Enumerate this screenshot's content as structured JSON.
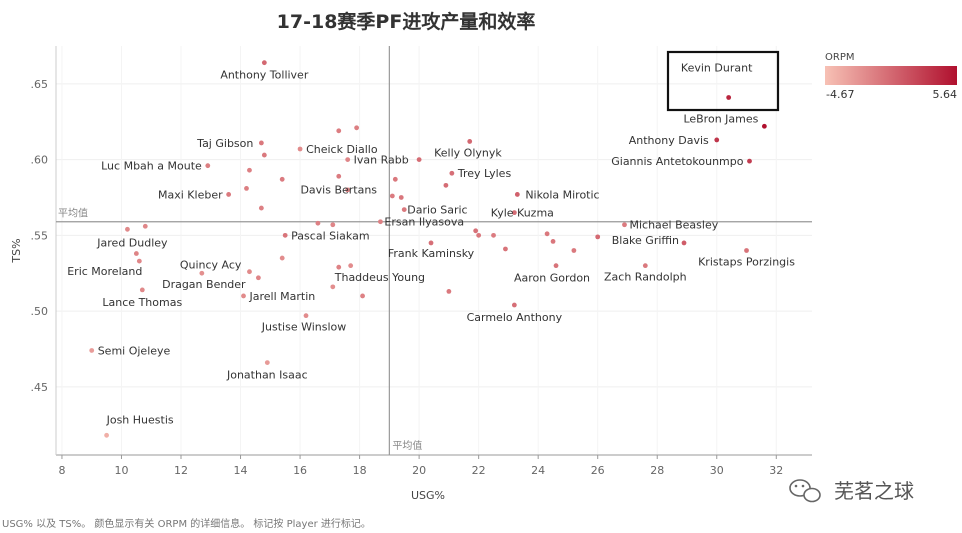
{
  "chart_data": {
    "type": "scatter",
    "title": "17-18赛季PF进攻产量和效率",
    "xlabel": "USG%",
    "ylabel": "TS%",
    "xlim": [
      7.8,
      33.2
    ],
    "ylim": [
      0.405,
      0.675
    ],
    "xticks": [
      8,
      10,
      12,
      14,
      16,
      18,
      20,
      22,
      24,
      26,
      28,
      30,
      32
    ],
    "yticks": [
      0.45,
      0.5,
      0.55,
      0.6,
      0.65
    ],
    "ytick_labels": [
      ".45",
      ".50",
      ".55",
      ".60",
      ".65"
    ],
    "avg_x": 19.0,
    "avg_y": 0.559,
    "avg_label": "平均值",
    "color_legend": {
      "title": "ORPM",
      "min": -4.67,
      "max": 5.64,
      "min_label": "-4.67",
      "max_label": "5.64",
      "low_color": "#f7c1b5",
      "high_color": "#b0102e",
      "position": "top-right"
    },
    "highlight": "Kevin Durant",
    "points": [
      {
        "name": "Anthony Tolliver",
        "x": 14.8,
        "y": 0.664,
        "orpm": 0.5
      },
      {
        "name": "Kevin Durant",
        "x": 30.4,
        "y": 0.641,
        "orpm": 4.4
      },
      {
        "name": "LeBron James",
        "x": 31.6,
        "y": 0.622,
        "orpm": 5.64
      },
      {
        "name": "Anthony Davis",
        "x": 30.0,
        "y": 0.613,
        "orpm": 3.4
      },
      {
        "name": "Giannis Antetokounmpo",
        "x": 31.1,
        "y": 0.599,
        "orpm": 3.0
      },
      {
        "name": "Taj Gibson",
        "x": 14.7,
        "y": 0.611,
        "orpm": -0.4
      },
      {
        "name": "Cheick Diallo",
        "x": 16.0,
        "y": 0.607,
        "orpm": -1.5
      },
      {
        "name": "Ivan Rabb",
        "x": 17.6,
        "y": 0.6,
        "orpm": -1.2
      },
      {
        "name": "Luc Mbah a Moute",
        "x": 12.9,
        "y": 0.596,
        "orpm": -0.8
      },
      {
        "name": "Kelly Olynyk",
        "x": 20.0,
        "y": 0.6,
        "orpm": 0.3
      },
      {
        "name": "Trey Lyles",
        "x": 21.1,
        "y": 0.591,
        "orpm": 0.1
      },
      {
        "name": "Davis Bertans",
        "x": 17.3,
        "y": 0.589,
        "orpm": -0.6
      },
      {
        "name": "Maxi Kleber",
        "x": 13.6,
        "y": 0.577,
        "orpm": -0.5
      },
      {
        "name": "Nikola Mirotic",
        "x": 23.3,
        "y": 0.577,
        "orpm": 0.9
      },
      {
        "name": "Dario Saric",
        "x": 19.5,
        "y": 0.567,
        "orpm": -0.4
      },
      {
        "name": "Ersan Ilyasova",
        "x": 18.7,
        "y": 0.559,
        "orpm": -0.9
      },
      {
        "name": "Kyle Kuzma",
        "x": 23.2,
        "y": 0.565,
        "orpm": 0.2
      },
      {
        "name": "Michael Beasley",
        "x": 26.9,
        "y": 0.557,
        "orpm": -0.6
      },
      {
        "name": "Pascal Siakam",
        "x": 15.5,
        "y": 0.55,
        "orpm": -0.2
      },
      {
        "name": "Jared Dudley",
        "x": 10.2,
        "y": 0.554,
        "orpm": -1.4
      },
      {
        "name": "Blake Griffin",
        "x": 28.9,
        "y": 0.545,
        "orpm": 1.2
      },
      {
        "name": "Frank Kaminsky",
        "x": 20.4,
        "y": 0.545,
        "orpm": 0.1
      },
      {
        "name": "Kristaps Porzingis",
        "x": 31.0,
        "y": 0.54,
        "orpm": -0.2
      },
      {
        "name": "Quincy Acy",
        "x": 14.3,
        "y": 0.526,
        "orpm": -1.5
      },
      {
        "name": "Thaddeus Young",
        "x": 17.3,
        "y": 0.529,
        "orpm": -1.0
      },
      {
        "name": "Aaron Gordon",
        "x": 24.6,
        "y": 0.53,
        "orpm": -0.2
      },
      {
        "name": "Zach Randolph",
        "x": 27.6,
        "y": 0.53,
        "orpm": -0.5
      },
      {
        "name": "Eric Moreland",
        "x": 10.6,
        "y": 0.533,
        "orpm": -1.3
      },
      {
        "name": "Dragan Bender",
        "x": 12.7,
        "y": 0.525,
        "orpm": -1.8
      },
      {
        "name": "Lance Thomas",
        "x": 10.7,
        "y": 0.514,
        "orpm": -1.4
      },
      {
        "name": "Jarell Martin",
        "x": 14.1,
        "y": 0.51,
        "orpm": -1.5
      },
      {
        "name": "Carmelo Anthony",
        "x": 23.2,
        "y": 0.504,
        "orpm": 0.1
      },
      {
        "name": "Justise Winslow",
        "x": 16.2,
        "y": 0.497,
        "orpm": -1.6
      },
      {
        "name": "Semi Ojeleye",
        "x": 9.0,
        "y": 0.474,
        "orpm": -2.5
      },
      {
        "name": "Jonathan Isaac",
        "x": 14.9,
        "y": 0.466,
        "orpm": -2.4
      },
      {
        "name": "Josh Huestis",
        "x": 9.5,
        "y": 0.418,
        "orpm": -3.6
      }
    ],
    "unlabeled_points": [
      {
        "x": 17.3,
        "y": 0.619,
        "orpm": -0.7
      },
      {
        "x": 17.9,
        "y": 0.621,
        "orpm": -0.8
      },
      {
        "x": 21.7,
        "y": 0.612,
        "orpm": 0.5
      },
      {
        "x": 14.8,
        "y": 0.603,
        "orpm": -0.5
      },
      {
        "x": 14.3,
        "y": 0.593,
        "orpm": -0.9
      },
      {
        "x": 15.4,
        "y": 0.587,
        "orpm": -0.6
      },
      {
        "x": 17.6,
        "y": 0.58,
        "orpm": -1.1
      },
      {
        "x": 14.2,
        "y": 0.581,
        "orpm": -0.8
      },
      {
        "x": 19.2,
        "y": 0.587,
        "orpm": -0.4
      },
      {
        "x": 20.9,
        "y": 0.583,
        "orpm": 0.2
      },
      {
        "x": 19.1,
        "y": 0.576,
        "orpm": -0.6
      },
      {
        "x": 19.4,
        "y": 0.575,
        "orpm": -0.3
      },
      {
        "x": 14.7,
        "y": 0.568,
        "orpm": -0.9
      },
      {
        "x": 16.6,
        "y": 0.558,
        "orpm": -0.9
      },
      {
        "x": 17.1,
        "y": 0.557,
        "orpm": -1.2
      },
      {
        "x": 10.8,
        "y": 0.556,
        "orpm": -1.3
      },
      {
        "x": 21.9,
        "y": 0.553,
        "orpm": 0.0
      },
      {
        "x": 22.0,
        "y": 0.55,
        "orpm": -0.4
      },
      {
        "x": 22.5,
        "y": 0.55,
        "orpm": -0.6
      },
      {
        "x": 24.3,
        "y": 0.551,
        "orpm": -0.4
      },
      {
        "x": 26.0,
        "y": 0.549,
        "orpm": 0.4
      },
      {
        "x": 24.5,
        "y": 0.546,
        "orpm": -0.3
      },
      {
        "x": 25.2,
        "y": 0.54,
        "orpm": -0.5
      },
      {
        "x": 22.9,
        "y": 0.541,
        "orpm": -0.2
      },
      {
        "x": 10.5,
        "y": 0.538,
        "orpm": -1.1
      },
      {
        "x": 15.4,
        "y": 0.535,
        "orpm": -1.6
      },
      {
        "x": 14.6,
        "y": 0.522,
        "orpm": -1.2
      },
      {
        "x": 17.7,
        "y": 0.53,
        "orpm": -1.6
      },
      {
        "x": 17.1,
        "y": 0.516,
        "orpm": -1.7
      },
      {
        "x": 21.0,
        "y": 0.513,
        "orpm": -0.5
      },
      {
        "x": 18.1,
        "y": 0.51,
        "orpm": -1.0
      }
    ]
  },
  "caption": "USG% 以及 TS%。 颜色显示有关 ORPM 的详细信息。 标记按 Player 进行标记。",
  "watermark": {
    "text": "芜茗之球",
    "icon": "wechat-icon"
  }
}
